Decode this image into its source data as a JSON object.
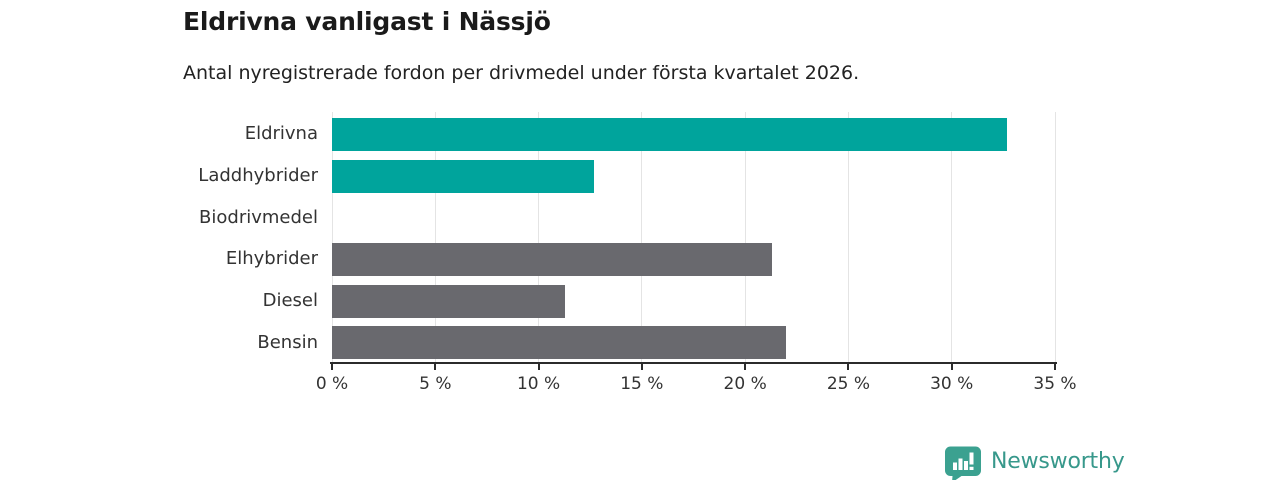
{
  "header": {
    "title": "Eldrivna vanligast i Nässjö",
    "subtitle": "Antal nyregistrerade fordon per drivmedel under första kvartalet 2026."
  },
  "chart_data": {
    "type": "bar",
    "orientation": "horizontal",
    "title": "Eldrivna vanligast i Nässjö",
    "subtitle": "Antal nyregistrerade fordon per drivmedel under första kvartalet 2026.",
    "categories": [
      "Eldrivna",
      "Laddhybrider",
      "Biodrivmedel",
      "Elhybrider",
      "Diesel",
      "Bensin"
    ],
    "values": [
      32.7,
      12.7,
      0,
      21.3,
      11.3,
      22.0
    ],
    "unit": "%",
    "bar_colors": [
      "#00a49c",
      "#00a49c",
      "#00a49c",
      "#69696e",
      "#69696e",
      "#69696e"
    ],
    "highlight_color": "#00a49c",
    "neutral_color": "#69696e",
    "xlim": [
      0,
      35
    ],
    "x_tick_labels": [
      "0 %",
      "5 %",
      "10 %",
      "15 %",
      "20 %",
      "25 %",
      "30 %",
      "35 %"
    ],
    "x_tick_values": [
      0,
      5,
      10,
      15,
      20,
      25,
      30,
      35
    ],
    "grid": true,
    "gridline_color": "#e4e4e4",
    "axis_color": "#2b2b2b",
    "label_color": "#333333",
    "legend": "none"
  },
  "footer": {
    "brand": "Newsworthy",
    "brand_color": "#37988b",
    "logo_color": "#3ba190"
  }
}
